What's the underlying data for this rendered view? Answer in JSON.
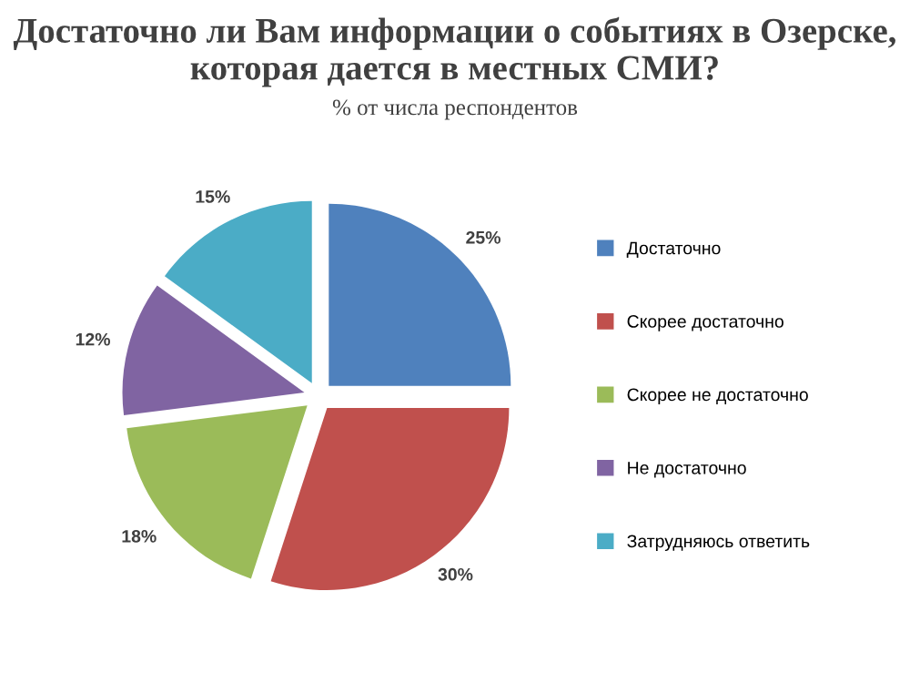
{
  "chart_data": {
    "type": "pie",
    "title": "Достаточно ли Вам информации о событиях в Озерске, которая дается в местных СМИ?",
    "subtitle": "% от числа респондентов",
    "categories": [
      "Достаточно",
      "Скорее достаточно",
      "Скорее не достаточно",
      "Не достаточно",
      "Затрудняюсь ответить"
    ],
    "values": [
      25,
      30,
      18,
      12,
      15
    ],
    "colors": [
      "#4f81bd",
      "#c0504d",
      "#9bbb59",
      "#8064a2",
      "#4bacc6"
    ],
    "value_labels": [
      "25%",
      "30%",
      "18%",
      "12%",
      "15%"
    ],
    "legend": "right"
  }
}
